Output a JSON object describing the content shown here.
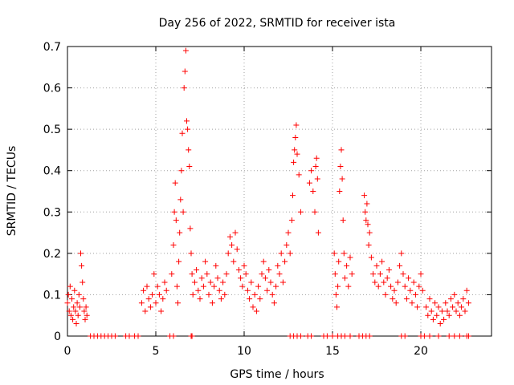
{
  "chart_data": {
    "type": "scatter",
    "title": "Day 256 of 2022, SRMTID for receiver ista",
    "xlabel": "GPS time / hours",
    "ylabel": "SRMTID / TECUs",
    "xlim": [
      0,
      24
    ],
    "ylim": [
      0,
      0.7
    ],
    "xticks": [
      0,
      5,
      10,
      15,
      20
    ],
    "yticks": [
      0,
      0.1,
      0.2,
      0.3,
      0.4,
      0.5,
      0.6,
      0.7
    ],
    "xtick_labels": [
      "0",
      "5",
      "10",
      "15",
      "20"
    ],
    "ytick_labels": [
      "0",
      "0.1",
      "0.2",
      "0.3",
      "0.4",
      "0.5",
      "0.6",
      "0.7"
    ],
    "grid": true,
    "marker": "+",
    "color": "#ff0000",
    "series": [
      {
        "name": "SRMTID",
        "points": [
          [
            0.0,
            0.08
          ],
          [
            0.05,
            0.1
          ],
          [
            0.1,
            0.06
          ],
          [
            0.15,
            0.12
          ],
          [
            0.2,
            0.05
          ],
          [
            0.25,
            0.09
          ],
          [
            0.3,
            0.04
          ],
          [
            0.35,
            0.07
          ],
          [
            0.4,
            0.11
          ],
          [
            0.45,
            0.06
          ],
          [
            0.5,
            0.03
          ],
          [
            0.55,
            0.08
          ],
          [
            0.6,
            0.05
          ],
          [
            0.65,
            0.1
          ],
          [
            0.7,
            0.07
          ],
          [
            0.75,
            0.2
          ],
          [
            0.8,
            0.17
          ],
          [
            0.85,
            0.13
          ],
          [
            0.9,
            0.09
          ],
          [
            0.95,
            0.06
          ],
          [
            1.0,
            0.04
          ],
          [
            1.05,
            0.07
          ],
          [
            1.1,
            0.05
          ],
          [
            1.3,
            0.0
          ],
          [
            1.5,
            0.0
          ],
          [
            1.7,
            0.0
          ],
          [
            1.9,
            0.0
          ],
          [
            2.1,
            0.0
          ],
          [
            2.3,
            0.0
          ],
          [
            2.5,
            0.0
          ],
          [
            2.7,
            0.0
          ],
          [
            3.3,
            0.0
          ],
          [
            3.5,
            0.0
          ],
          [
            3.8,
            0.0
          ],
          [
            4.0,
            0.0
          ],
          [
            4.2,
            0.08
          ],
          [
            4.3,
            0.11
          ],
          [
            4.4,
            0.06
          ],
          [
            4.5,
            0.12
          ],
          [
            4.6,
            0.09
          ],
          [
            4.7,
            0.07
          ],
          [
            4.8,
            0.1
          ],
          [
            4.9,
            0.15
          ],
          [
            5.0,
            0.08
          ],
          [
            5.1,
            0.12
          ],
          [
            5.2,
            0.1
          ],
          [
            5.3,
            0.06
          ],
          [
            5.4,
            0.09
          ],
          [
            5.5,
            0.13
          ],
          [
            5.6,
            0.11
          ],
          [
            5.8,
            0.0
          ],
          [
            6.0,
            0.0
          ],
          [
            5.9,
            0.15
          ],
          [
            6.0,
            0.22
          ],
          [
            6.05,
            0.3
          ],
          [
            6.1,
            0.37
          ],
          [
            6.15,
            0.28
          ],
          [
            6.2,
            0.12
          ],
          [
            6.25,
            0.08
          ],
          [
            6.3,
            0.18
          ],
          [
            6.35,
            0.25
          ],
          [
            6.4,
            0.33
          ],
          [
            6.45,
            0.4
          ],
          [
            6.5,
            0.49
          ],
          [
            6.55,
            0.3
          ],
          [
            6.6,
            0.6
          ],
          [
            6.65,
            0.64
          ],
          [
            6.7,
            0.69
          ],
          [
            6.75,
            0.52
          ],
          [
            6.8,
            0.5
          ],
          [
            6.85,
            0.45
          ],
          [
            6.9,
            0.41
          ],
          [
            6.95,
            0.26
          ],
          [
            7.0,
            0.2
          ],
          [
            7.05,
            0.15
          ],
          [
            7.1,
            0.1
          ],
          [
            7.2,
            0.13
          ],
          [
            7.3,
            0.16
          ],
          [
            7.4,
            0.11
          ],
          [
            7.5,
            0.09
          ],
          [
            7.6,
            0.14
          ],
          [
            7.7,
            0.12
          ],
          [
            7.8,
            0.18
          ],
          [
            7.9,
            0.15
          ],
          [
            8.0,
            0.1
          ],
          [
            8.1,
            0.13
          ],
          [
            8.2,
            0.08
          ],
          [
            8.3,
            0.12
          ],
          [
            8.4,
            0.17
          ],
          [
            8.5,
            0.14
          ],
          [
            8.6,
            0.11
          ],
          [
            8.7,
            0.09
          ],
          [
            8.8,
            0.13
          ],
          [
            8.9,
            0.1
          ],
          [
            9.0,
            0.15
          ],
          [
            9.1,
            0.2
          ],
          [
            9.2,
            0.24
          ],
          [
            9.3,
            0.22
          ],
          [
            9.4,
            0.18
          ],
          [
            9.5,
            0.25
          ],
          [
            9.6,
            0.21
          ],
          [
            9.7,
            0.16
          ],
          [
            9.8,
            0.14
          ],
          [
            9.9,
            0.12
          ],
          [
            10.0,
            0.17
          ],
          [
            10.1,
            0.15
          ],
          [
            10.2,
            0.11
          ],
          [
            10.3,
            0.09
          ],
          [
            10.4,
            0.13
          ],
          [
            7.0,
            0.0
          ],
          [
            7.05,
            0.0
          ],
          [
            10.5,
            0.07
          ],
          [
            10.6,
            0.1
          ],
          [
            10.7,
            0.06
          ],
          [
            10.8,
            0.12
          ],
          [
            10.9,
            0.09
          ],
          [
            11.0,
            0.15
          ],
          [
            11.1,
            0.18
          ],
          [
            11.2,
            0.14
          ],
          [
            11.3,
            0.11
          ],
          [
            11.4,
            0.16
          ],
          [
            11.5,
            0.13
          ],
          [
            11.6,
            0.1
          ],
          [
            11.7,
            0.08
          ],
          [
            11.8,
            0.12
          ],
          [
            11.9,
            0.17
          ],
          [
            12.0,
            0.15
          ],
          [
            12.1,
            0.2
          ],
          [
            12.2,
            0.13
          ],
          [
            12.3,
            0.18
          ],
          [
            12.4,
            0.22
          ],
          [
            12.5,
            0.25
          ],
          [
            12.6,
            0.2
          ],
          [
            12.7,
            0.28
          ],
          [
            12.75,
            0.34
          ],
          [
            12.8,
            0.42
          ],
          [
            12.85,
            0.45
          ],
          [
            12.9,
            0.48
          ],
          [
            12.95,
            0.51
          ],
          [
            13.0,
            0.44
          ],
          [
            13.1,
            0.39
          ],
          [
            13.2,
            0.3
          ],
          [
            12.6,
            0.0
          ],
          [
            12.8,
            0.0
          ],
          [
            13.0,
            0.0
          ],
          [
            13.2,
            0.0
          ],
          [
            13.6,
            0.0
          ],
          [
            13.8,
            0.0
          ],
          [
            13.7,
            0.37
          ],
          [
            13.8,
            0.4
          ],
          [
            13.9,
            0.35
          ],
          [
            14.0,
            0.3
          ],
          [
            14.05,
            0.41
          ],
          [
            14.1,
            0.43
          ],
          [
            14.15,
            0.38
          ],
          [
            14.2,
            0.25
          ],
          [
            14.5,
            0.0
          ],
          [
            14.7,
            0.0
          ],
          [
            15.0,
            0.0
          ],
          [
            15.1,
            0.2
          ],
          [
            15.15,
            0.15
          ],
          [
            15.2,
            0.1
          ],
          [
            15.25,
            0.07
          ],
          [
            15.3,
            0.12
          ],
          [
            15.35,
            0.18
          ],
          [
            15.4,
            0.35
          ],
          [
            15.45,
            0.41
          ],
          [
            15.5,
            0.45
          ],
          [
            15.55,
            0.38
          ],
          [
            15.6,
            0.28
          ],
          [
            15.65,
            0.2
          ],
          [
            15.7,
            0.14
          ],
          [
            15.8,
            0.17
          ],
          [
            15.9,
            0.12
          ],
          [
            16.0,
            0.19
          ],
          [
            16.1,
            0.15
          ],
          [
            15.3,
            0.0
          ],
          [
            15.5,
            0.0
          ],
          [
            15.7,
            0.0
          ],
          [
            16.0,
            0.0
          ],
          [
            16.5,
            0.0
          ],
          [
            16.7,
            0.0
          ],
          [
            16.9,
            0.0
          ],
          [
            17.1,
            0.0
          ],
          [
            16.8,
            0.34
          ],
          [
            16.85,
            0.3
          ],
          [
            16.9,
            0.28
          ],
          [
            16.95,
            0.32
          ],
          [
            17.0,
            0.27
          ],
          [
            17.05,
            0.22
          ],
          [
            17.1,
            0.25
          ],
          [
            17.2,
            0.19
          ],
          [
            17.3,
            0.15
          ],
          [
            17.4,
            0.13
          ],
          [
            17.5,
            0.17
          ],
          [
            17.6,
            0.12
          ],
          [
            17.7,
            0.15
          ],
          [
            17.8,
            0.18
          ],
          [
            17.9,
            0.13
          ],
          [
            18.0,
            0.1
          ],
          [
            18.1,
            0.14
          ],
          [
            18.2,
            0.16
          ],
          [
            18.3,
            0.12
          ],
          [
            18.4,
            0.09
          ],
          [
            18.5,
            0.11
          ],
          [
            18.6,
            0.08
          ],
          [
            18.7,
            0.13
          ],
          [
            18.8,
            0.17
          ],
          [
            18.9,
            0.2
          ],
          [
            19.0,
            0.15
          ],
          [
            19.1,
            0.12
          ],
          [
            19.2,
            0.09
          ],
          [
            19.3,
            0.14
          ],
          [
            19.4,
            0.11
          ],
          [
            19.5,
            0.08
          ],
          [
            19.6,
            0.13
          ],
          [
            19.7,
            0.1
          ],
          [
            19.8,
            0.07
          ],
          [
            19.9,
            0.12
          ],
          [
            20.0,
            0.15
          ],
          [
            20.1,
            0.11
          ],
          [
            18.9,
            0.0
          ],
          [
            19.1,
            0.0
          ],
          [
            20.0,
            0.0
          ],
          [
            20.2,
            0.0
          ],
          [
            20.3,
            0.07
          ],
          [
            20.4,
            0.05
          ],
          [
            20.5,
            0.09
          ],
          [
            20.6,
            0.06
          ],
          [
            20.7,
            0.04
          ],
          [
            20.8,
            0.08
          ],
          [
            20.9,
            0.05
          ],
          [
            21.0,
            0.07
          ],
          [
            21.1,
            0.03
          ],
          [
            21.2,
            0.06
          ],
          [
            21.3,
            0.04
          ],
          [
            21.4,
            0.08
          ],
          [
            21.5,
            0.06
          ],
          [
            21.6,
            0.05
          ],
          [
            21.7,
            0.09
          ],
          [
            21.8,
            0.07
          ],
          [
            21.9,
            0.1
          ],
          [
            22.0,
            0.06
          ],
          [
            22.1,
            0.08
          ],
          [
            22.2,
            0.05
          ],
          [
            22.3,
            0.07
          ],
          [
            22.4,
            0.09
          ],
          [
            22.5,
            0.06
          ],
          [
            22.6,
            0.11
          ],
          [
            22.7,
            0.08
          ],
          [
            20.5,
            0.0
          ],
          [
            21.0,
            0.0
          ],
          [
            21.6,
            0.0
          ],
          [
            21.9,
            0.0
          ],
          [
            22.2,
            0.0
          ],
          [
            22.6,
            0.0
          ],
          [
            22.7,
            0.0
          ]
        ]
      }
    ]
  }
}
